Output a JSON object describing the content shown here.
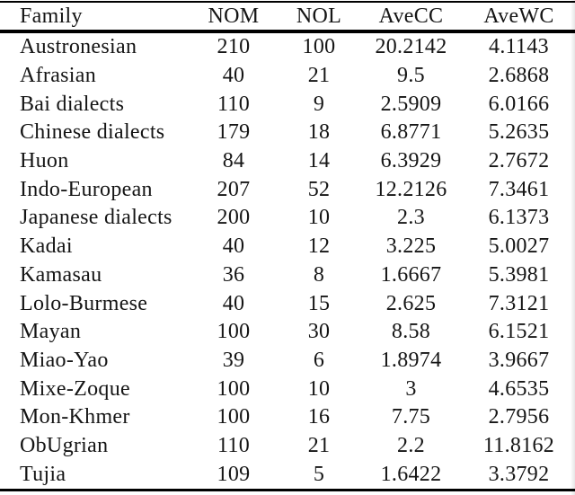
{
  "page": {
    "background_color": "#ffffff",
    "text_color": "#151515",
    "rule_color": "#000000"
  },
  "table": {
    "columns": [
      "Family",
      "NOM",
      "NOL",
      "AveCC",
      "AveWC"
    ],
    "rows": [
      [
        "Austronesian",
        "210",
        "100",
        "20.2142",
        "4.1143"
      ],
      [
        "Afrasian",
        "40",
        "21",
        "9.5",
        "2.6868"
      ],
      [
        "Bai dialects",
        "110",
        "9",
        "2.5909",
        "6.0166"
      ],
      [
        "Chinese dialects",
        "179",
        "18",
        "6.8771",
        "5.2635"
      ],
      [
        "Huon",
        "84",
        "14",
        "6.3929",
        "2.7672"
      ],
      [
        "Indo-European",
        "207",
        "52",
        "12.2126",
        "7.3461"
      ],
      [
        "Japanese dialects",
        "200",
        "10",
        "2.3",
        "6.1373"
      ],
      [
        "Kadai",
        "40",
        "12",
        "3.225",
        "5.0027"
      ],
      [
        "Kamasau",
        "36",
        "8",
        "1.6667",
        "5.3981"
      ],
      [
        "Lolo-Burmese",
        "40",
        "15",
        "2.625",
        "7.3121"
      ],
      [
        "Mayan",
        "100",
        "30",
        "8.58",
        "6.1521"
      ],
      [
        "Miao-Yao",
        "39",
        "6",
        "1.8974",
        "3.9667"
      ],
      [
        "Mixe-Zoque",
        "100",
        "10",
        "3",
        "4.6535"
      ],
      [
        "Mon-Khmer",
        "100",
        "16",
        "7.75",
        "2.7956"
      ],
      [
        "ObUgrian",
        "110",
        "21",
        "2.2",
        "11.8162"
      ],
      [
        "Tujia",
        "109",
        "5",
        "1.6422",
        "3.3792"
      ]
    ]
  }
}
